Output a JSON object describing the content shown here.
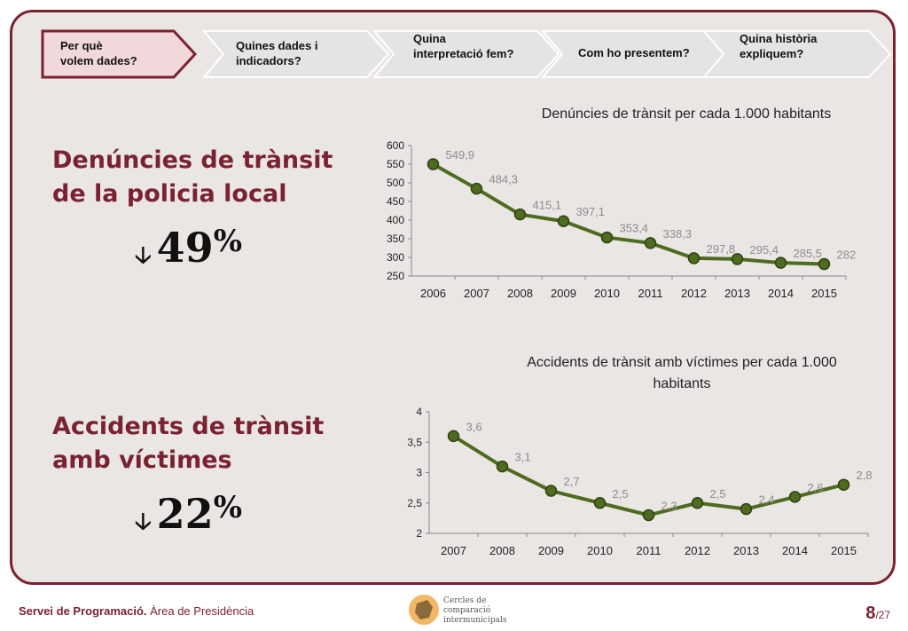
{
  "nav": {
    "steps": [
      {
        "label_line1": "Per què",
        "label_line2": "volem dades?",
        "active": true
      },
      {
        "label_line1": "Quines dades i",
        "label_line2": "indicadors?",
        "active": false
      },
      {
        "label_line1": "Quina",
        "label_line2": "interpretació fem?",
        "active": false
      },
      {
        "label_line1": "Com ho presentem?",
        "label_line2": "",
        "active": false
      },
      {
        "label_line1": "Quina història",
        "label_line2": "expliquem?",
        "active": false
      }
    ]
  },
  "section1": {
    "heading_line1": "Denúncies de trànsit",
    "heading_line2": "de la policia local",
    "arrow": "🡣",
    "value": "49",
    "unit": "%"
  },
  "section2": {
    "heading_line1": "Accidents de trànsit",
    "heading_line2": "amb víctimes",
    "arrow": "🡣",
    "value": "22",
    "unit": "%"
  },
  "chart_data": [
    {
      "type": "line",
      "title": "Denúncies de trànsit per cada 1.000 habitants",
      "categories": [
        "2006",
        "2007",
        "2008",
        "2009",
        "2010",
        "2011",
        "2012",
        "2013",
        "2014",
        "2015"
      ],
      "values": [
        549.9,
        484.3,
        415.1,
        397.1,
        353.4,
        338.3,
        297.8,
        295.4,
        285.5,
        282
      ],
      "labels": [
        "549,9",
        "484,3",
        "415,1",
        "397,1",
        "353,4",
        "338,3",
        "297,8",
        "295,4",
        "285,5",
        "282"
      ],
      "ylim": [
        250,
        600
      ],
      "yticks": [
        "250",
        "300",
        "350",
        "400",
        "450",
        "500",
        "550",
        "600"
      ],
      "color": "#4e6b1f"
    },
    {
      "type": "line",
      "title_line1": "Accidents de trànsit amb víctimes per cada 1.000",
      "title_line2": "habitants",
      "categories": [
        "2007",
        "2008",
        "2009",
        "2010",
        "2011",
        "2012",
        "2013",
        "2014",
        "2015"
      ],
      "values": [
        3.6,
        3.1,
        2.7,
        2.5,
        2.3,
        2.5,
        2.4,
        2.6,
        2.8
      ],
      "labels": [
        "3,6",
        "3,1",
        "2,7",
        "2,5",
        "2,3",
        "2,5",
        "2,4",
        "2,6",
        "2,8"
      ],
      "ylim": [
        2,
        4
      ],
      "yticks": [
        "2",
        "2,5",
        "3",
        "3,5",
        "4"
      ],
      "color": "#4e6b1f"
    }
  ],
  "footer": {
    "org_bold": "Servei de Programació.",
    "org_rest": " Àrea de Presidència",
    "logo_line1": "Cercles de comparació",
    "logo_line2": "intermunicipals",
    "page": "8",
    "total": "/27"
  }
}
